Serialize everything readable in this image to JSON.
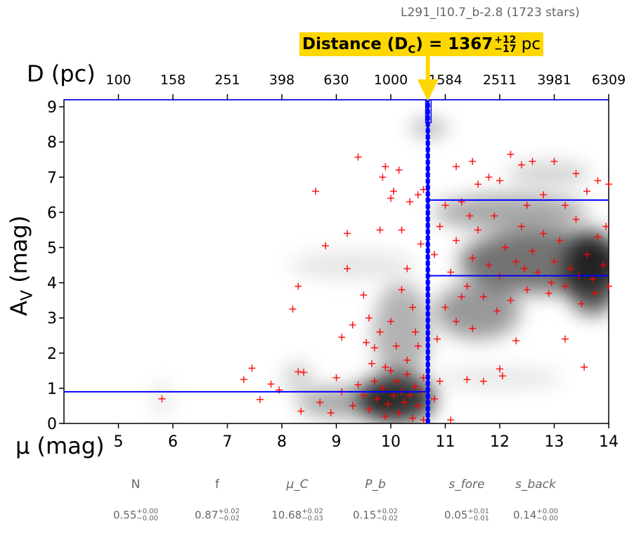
{
  "subtitle": "L291_l10.7_b-2.8 (1723 stars)",
  "distance_label": {
    "prefix": "Distance (D",
    "sub": "C",
    "eq": ") = 1367",
    "plus": "+12",
    "minus": "−17",
    "unit": " pc"
  },
  "colors": {
    "points": "#ff0000",
    "lines": "#0000ff",
    "highlight": "#ffd700",
    "density": "#000000"
  },
  "chart_data": {
    "type": "scatter",
    "xlabel": "μ (mag)",
    "ylabel": "A",
    "ylabel_sub": "V",
    "ylabel_unit": " (mag)",
    "top_xlabel": "D (pc)",
    "xlim": [
      4,
      14
    ],
    "ylim": [
      0,
      9.2
    ],
    "x_ticks": [
      5,
      6,
      7,
      8,
      9,
      10,
      11,
      12,
      13,
      14
    ],
    "y_ticks": [
      0,
      1,
      2,
      3,
      4,
      5,
      6,
      7,
      8,
      9
    ],
    "top_ticks": [
      "100",
      "158",
      "251",
      "398",
      "630",
      "1000",
      "1584",
      "2511",
      "3981",
      "6309"
    ],
    "background": "grayscale density map",
    "best_mu": 10.68,
    "mu_err": [
      10.65,
      10.71
    ],
    "foreground_av": 0.9,
    "background_av_lines": [
      4.2,
      6.35
    ],
    "points": [
      [
        5.8,
        0.7
      ],
      [
        7.3,
        1.25
      ],
      [
        7.45,
        1.57
      ],
      [
        7.6,
        0.68
      ],
      [
        7.8,
        1.12
      ],
      [
        7.95,
        0.95
      ],
      [
        8.2,
        3.25
      ],
      [
        8.3,
        3.9
      ],
      [
        8.3,
        1.47
      ],
      [
        8.4,
        1.45
      ],
      [
        8.35,
        0.35
      ],
      [
        8.62,
        6.6
      ],
      [
        8.8,
        5.05
      ],
      [
        9.1,
        2.45
      ],
      [
        9.2,
        5.4
      ],
      [
        9.2,
        4.4
      ],
      [
        9.4,
        7.57
      ],
      [
        9.5,
        3.65
      ],
      [
        9.3,
        2.8
      ],
      [
        9.55,
        2.3
      ],
      [
        9.6,
        3.0
      ],
      [
        9.7,
        2.15
      ],
      [
        9.8,
        2.6
      ],
      [
        9.8,
        5.5
      ],
      [
        9.85,
        7.0
      ],
      [
        9.9,
        7.3
      ],
      [
        10.0,
        6.4
      ],
      [
        10.05,
        6.6
      ],
      [
        10.15,
        7.2
      ],
      [
        10.2,
        5.5
      ],
      [
        10.3,
        4.4
      ],
      [
        10.35,
        6.3
      ],
      [
        10.5,
        6.5
      ],
      [
        10.55,
        5.1
      ],
      [
        10.6,
        6.65
      ],
      [
        10.4,
        3.3
      ],
      [
        10.2,
        3.8
      ],
      [
        10.0,
        2.9
      ],
      [
        10.1,
        2.2
      ],
      [
        10.45,
        2.6
      ],
      [
        10.5,
        2.2
      ],
      [
        9.9,
        1.6
      ],
      [
        9.7,
        1.2
      ],
      [
        9.5,
        0.8
      ],
      [
        9.3,
        0.5
      ],
      [
        9.1,
        0.9
      ],
      [
        9.0,
        1.3
      ],
      [
        8.7,
        0.6
      ],
      [
        8.9,
        0.3
      ],
      [
        9.6,
        0.4
      ],
      [
        9.75,
        0.7
      ],
      [
        9.85,
        1.0
      ],
      [
        9.95,
        0.55
      ],
      [
        10.05,
        0.8
      ],
      [
        10.1,
        1.2
      ],
      [
        10.15,
        0.3
      ],
      [
        10.2,
        0.9
      ],
      [
        10.25,
        0.6
      ],
      [
        10.3,
        1.4
      ],
      [
        10.35,
        0.8
      ],
      [
        10.4,
        0.15
      ],
      [
        10.45,
        1.05
      ],
      [
        10.5,
        0.5
      ],
      [
        10.55,
        0.9
      ],
      [
        10.6,
        1.3
      ],
      [
        9.9,
        0.2
      ],
      [
        10.0,
        1.5
      ],
      [
        10.3,
        1.8
      ],
      [
        10.6,
        0.1
      ],
      [
        9.4,
        1.1
      ],
      [
        9.65,
        1.7
      ],
      [
        10.8,
        0.7
      ],
      [
        10.9,
        1.2
      ],
      [
        10.85,
        2.4
      ],
      [
        11.0,
        3.3
      ],
      [
        11.1,
        0.1
      ],
      [
        11.2,
        2.9
      ],
      [
        11.3,
        3.6
      ],
      [
        11.4,
        1.25
      ],
      [
        11.5,
        2.7
      ],
      [
        11.7,
        1.2
      ],
      [
        12.0,
        1.55
      ],
      [
        12.05,
        1.35
      ],
      [
        12.3,
        2.35
      ],
      [
        13.2,
        2.4
      ],
      [
        13.55,
        1.6
      ],
      [
        10.8,
        4.8
      ],
      [
        10.9,
        5.6
      ],
      [
        11.0,
        6.2
      ],
      [
        11.1,
        4.3
      ],
      [
        11.2,
        5.2
      ],
      [
        11.3,
        6.3
      ],
      [
        11.4,
        3.9
      ],
      [
        11.5,
        4.7
      ],
      [
        11.6,
        5.5
      ],
      [
        11.7,
        3.6
      ],
      [
        11.8,
        4.5
      ],
      [
        11.9,
        5.9
      ],
      [
        12.0,
        4.2
      ],
      [
        12.1,
        5.0
      ],
      [
        12.2,
        3.5
      ],
      [
        12.3,
        4.6
      ],
      [
        12.4,
        5.6
      ],
      [
        12.5,
        3.8
      ],
      [
        12.6,
        4.9
      ],
      [
        12.7,
        4.3
      ],
      [
        12.8,
        5.4
      ],
      [
        12.9,
        3.7
      ],
      [
        13.0,
        4.6
      ],
      [
        13.1,
        5.2
      ],
      [
        13.2,
        3.9
      ],
      [
        13.3,
        4.4
      ],
      [
        13.4,
        5.8
      ],
      [
        13.5,
        3.4
      ],
      [
        13.6,
        4.8
      ],
      [
        13.7,
        4.1
      ],
      [
        13.8,
        5.3
      ],
      [
        13.9,
        4.5
      ],
      [
        14.0,
        3.9
      ],
      [
        13.95,
        5.6
      ],
      [
        13.75,
        3.7
      ],
      [
        13.45,
        4.2
      ],
      [
        12.95,
        4.0
      ],
      [
        12.45,
        4.4
      ],
      [
        11.95,
        3.2
      ],
      [
        11.45,
        5.9
      ],
      [
        11.2,
        7.3
      ],
      [
        11.5,
        7.45
      ],
      [
        11.8,
        7.0
      ],
      [
        12.2,
        7.65
      ],
      [
        12.4,
        7.35
      ],
      [
        12.6,
        7.45
      ],
      [
        13.0,
        7.45
      ],
      [
        13.4,
        7.1
      ],
      [
        13.8,
        6.9
      ],
      [
        14.0,
        6.8
      ],
      [
        12.0,
        6.9
      ],
      [
        12.8,
        6.5
      ],
      [
        13.6,
        6.6
      ],
      [
        11.6,
        6.8
      ],
      [
        12.5,
        6.2
      ],
      [
        13.2,
        6.2
      ]
    ]
  },
  "parameters": [
    {
      "name": "N",
      "value": "0.55",
      "plus": "+0.00",
      "minus": "−0.00"
    },
    {
      "name": "f",
      "value": "0.87",
      "plus": "+0.02",
      "minus": "−0.02"
    },
    {
      "name": "μ_C",
      "value": "10.68",
      "plus": "+0.02",
      "minus": "−0.03"
    },
    {
      "name": "P_b",
      "value": "0.15",
      "plus": "+0.02",
      "minus": "−0.02"
    },
    {
      "name": "s_fore",
      "value": "0.05",
      "plus": "+0.01",
      "minus": "−0.01"
    },
    {
      "name": "s_back",
      "value": "0.14",
      "plus": "+0.00",
      "minus": "−0.00"
    }
  ]
}
